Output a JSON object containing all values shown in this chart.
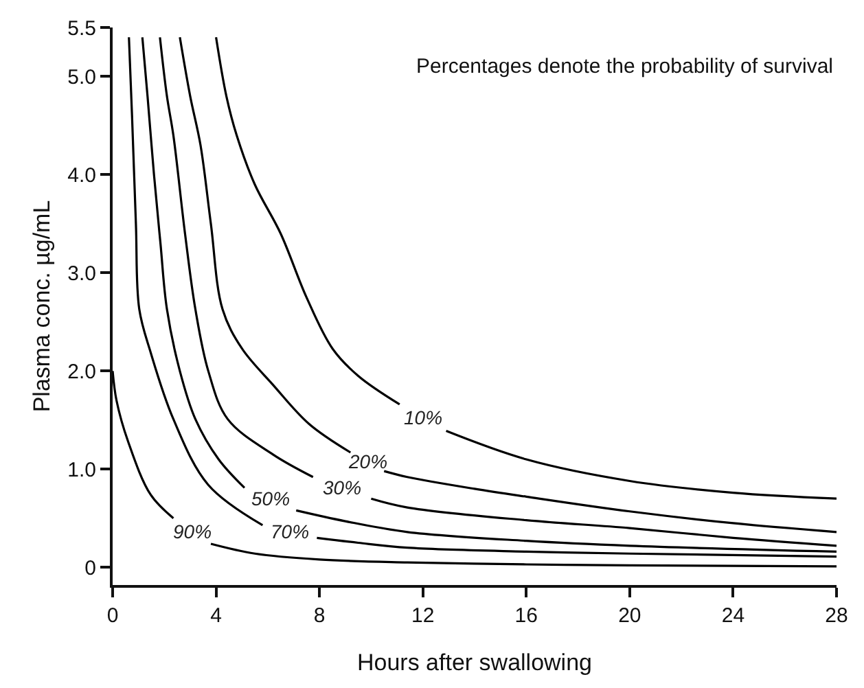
{
  "chart_data": {
    "type": "line",
    "xlabel": "Hours after swallowing",
    "ylabel": "Plasma conc. µg/mL",
    "xlim": [
      0,
      28
    ],
    "xticks": [
      0,
      4,
      8,
      12,
      16,
      20,
      24,
      28
    ],
    "ylim": [
      -0.18,
      5.5
    ],
    "yticks": [
      {
        "value": 0,
        "label": "0"
      },
      {
        "value": 1,
        "label": "1.0"
      },
      {
        "value": 2,
        "label": "2.0"
      },
      {
        "value": 3,
        "label": "3.0"
      },
      {
        "value": 4,
        "label": "4.0"
      },
      {
        "value": 5,
        "label": "5.0"
      },
      5.5
    ],
    "grid": false,
    "legend": false,
    "marker": "none",
    "line_style": "solid",
    "series": [
      {
        "name": "10%",
        "color": "#000000",
        "x": [
          4.0,
          4.4,
          4.8,
          5.5,
          6.5,
          7.5,
          8.5,
          9.5,
          11.1,
          12,
          12.9,
          16,
          20,
          24,
          28
        ],
        "values": [
          5.4,
          4.8,
          4.4,
          3.9,
          3.4,
          2.75,
          2.23,
          1.95,
          1.66,
          null,
          1.39,
          1.1,
          0.88,
          0.76,
          0.7
        ]
      },
      {
        "name": "20%",
        "color": "#000000",
        "x": [
          2.6,
          3.0,
          3.4,
          3.8,
          4.25,
          5.0,
          6.2,
          7.6,
          9.2,
          9.9,
          10.5,
          11.4,
          14,
          16,
          20,
          24,
          28
        ],
        "values": [
          5.4,
          4.8,
          4.3,
          3.5,
          2.63,
          2.23,
          1.86,
          1.46,
          1.17,
          null,
          0.98,
          0.92,
          0.8,
          0.72,
          0.57,
          0.45,
          0.36
        ]
      },
      {
        "name": "30%",
        "color": "#000000",
        "x": [
          1.83,
          2.1,
          2.35,
          2.8,
          3.2,
          3.7,
          4.45,
          6.2,
          7.75,
          8.8,
          10.0,
          11.4,
          16,
          20,
          24,
          28
        ],
        "values": [
          5.4,
          4.8,
          4.4,
          3.4,
          2.63,
          2.0,
          1.51,
          1.15,
          0.92,
          null,
          0.7,
          0.61,
          0.48,
          0.4,
          0.3,
          0.22
        ]
      },
      {
        "name": "50%",
        "color": "#000000",
        "x": [
          1.15,
          1.35,
          1.6,
          1.85,
          2.1,
          2.6,
          3.2,
          4.1,
          5.1,
          6.1,
          7.1,
          9,
          11.4,
          16,
          20,
          28
        ],
        "values": [
          5.4,
          4.8,
          4.0,
          3.3,
          2.63,
          2.0,
          1.51,
          1.1,
          0.81,
          null,
          0.58,
          0.47,
          0.36,
          0.27,
          0.22,
          0.16
        ]
      },
      {
        "name": "70%",
        "color": "#000000",
        "x": [
          0.63,
          0.75,
          0.9,
          1.03,
          1.47,
          2.35,
          3.7,
          5.8,
          7.0,
          7.9,
          9.5,
          11.4,
          16,
          20,
          28
        ],
        "values": [
          5.4,
          4.6,
          3.5,
          2.63,
          2.19,
          1.51,
          0.84,
          0.43,
          null,
          0.3,
          0.25,
          0.2,
          0.16,
          0.14,
          0.11
        ]
      },
      {
        "name": "90%",
        "color": "#000000",
        "x": [
          0,
          0.15,
          0.6,
          1.47,
          2.35,
          3.3,
          3.8,
          5.5,
          8,
          11.4,
          16,
          20,
          28
        ],
        "values": [
          2.0,
          1.7,
          1.28,
          0.74,
          0.5,
          null,
          0.24,
          0.14,
          0.08,
          0.05,
          0.03,
          0.02,
          0.01
        ]
      }
    ],
    "annotations": [
      "Percentages denote the probability of survival"
    ]
  }
}
